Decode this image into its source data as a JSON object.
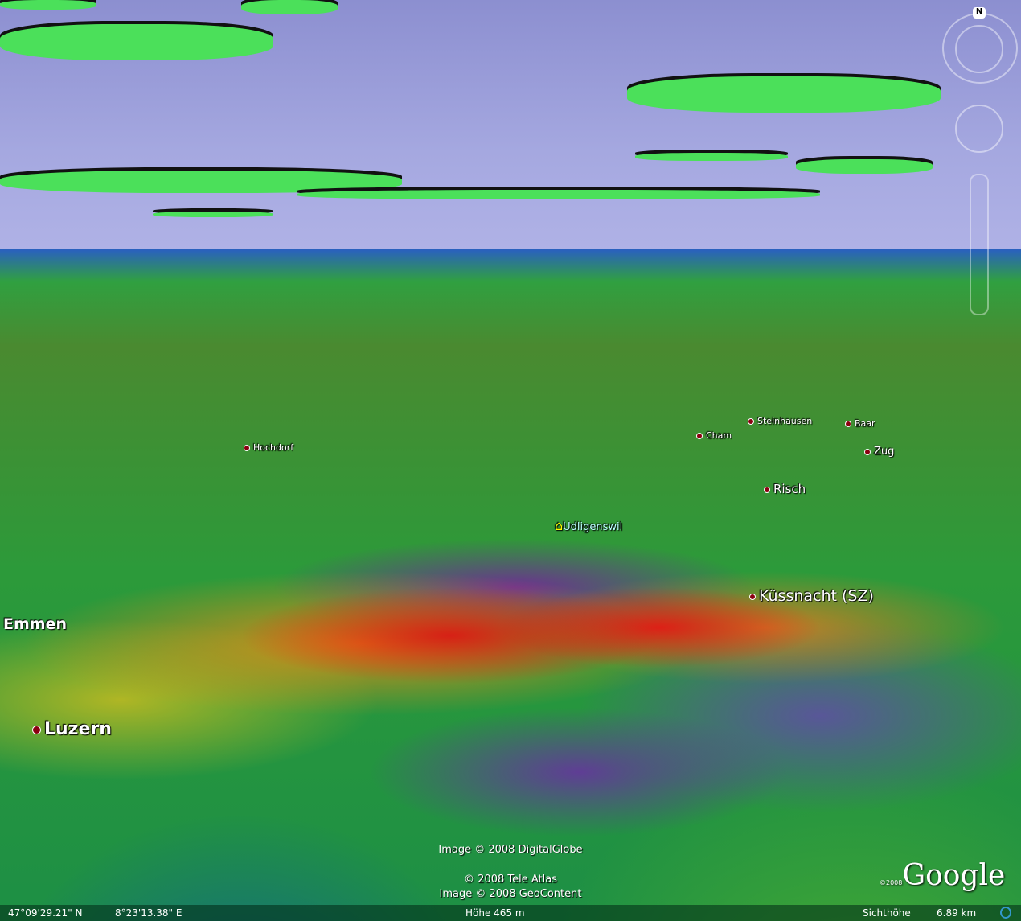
{
  "places": {
    "hochdorf": "Hochdorf",
    "cham": "Cham",
    "steinhausen": "Steinhausen",
    "baar": "Baar",
    "zug": "Zug",
    "risch": "Risch",
    "udligenswil": "Udligenswil",
    "kussnacht": "Küssnacht (SZ)",
    "emmen": "Emmen",
    "luzern": "Luzern"
  },
  "credits": {
    "digitalglobe": "Image © 2008 DigitalGlobe",
    "teleatlas": "© 2008 Tele Atlas",
    "geocontent": "Image © 2008 GeoContent"
  },
  "logo": {
    "text": "Google",
    "year": "©2008"
  },
  "navigation": {
    "north_label": "N"
  },
  "status": {
    "lat": "47°09'29.21\" N",
    "lon": "8°23'13.38\" E",
    "elevation": "Höhe 465 m",
    "eye_alt_label": "Sichthöhe",
    "eye_alt": "6.89 km"
  }
}
